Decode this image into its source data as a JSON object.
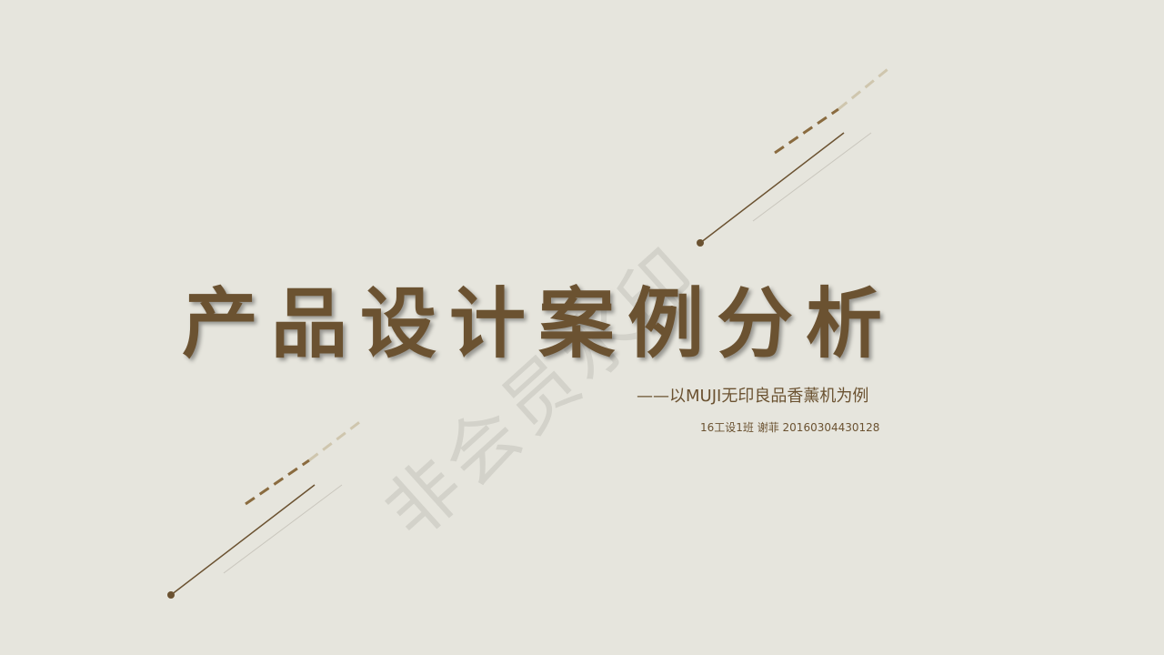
{
  "slide": {
    "title": "产品设计案例分析",
    "subtitle": "——以MUJI无印良品香薰机为例",
    "author": "16工设1班 谢菲 20160304430128",
    "watermark": "非会员水印"
  },
  "colors": {
    "background": "#e6e5dd",
    "accent": "#6b5231",
    "dash_light": "#cfc6ae",
    "thin_line": "#c9c6bd",
    "watermark": "#a0a09b"
  }
}
